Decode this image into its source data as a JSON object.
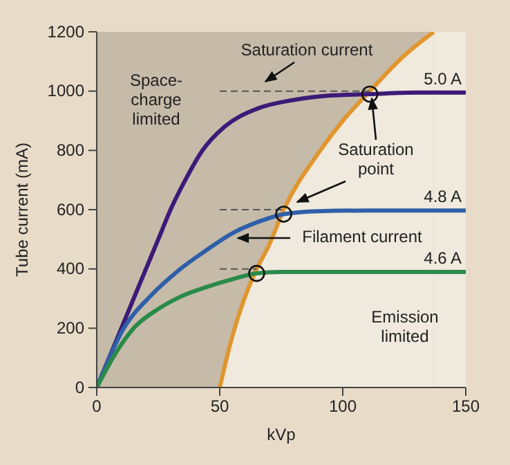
{
  "chart_data": {
    "type": "line",
    "xlabel": "kVp",
    "ylabel": "Tube current (mA)",
    "xlim": [
      0,
      150
    ],
    "xticks": [
      0,
      50,
      100,
      150
    ],
    "ylim": [
      0,
      1200
    ],
    "yticks": [
      0,
      200,
      400,
      600,
      800,
      1000,
      1200
    ],
    "grid": false,
    "bands": [
      {
        "axis": "x",
        "from": 0,
        "to": 137,
        "color": "#c6bba9"
      }
    ],
    "series": [
      {
        "type": "area",
        "color": "#e0962e",
        "x": [
          50,
          55,
          60,
          65,
          70,
          76,
          90,
          100,
          111,
          125,
          137
        ],
        "values": [
          0,
          170,
          300,
          400,
          480,
          600,
          790,
          900,
          1000,
          1120,
          1200
        ]
      },
      {
        "name": "5.0 A",
        "color": "#3d1a78",
        "x": [
          0,
          10,
          20,
          25,
          30,
          36,
          43,
          52,
          65,
          80,
          95,
          111,
          130,
          150
        ],
        "values": [
          0,
          200,
          400,
          500,
          600,
          700,
          800,
          880,
          940,
          970,
          985,
          990,
          995,
          995
        ]
      },
      {
        "name": "4.8 A",
        "color": "#2f5fa8",
        "x": [
          0,
          11,
          22,
          34,
          44,
          55,
          66,
          76,
          90,
          110,
          150
        ],
        "values": [
          0,
          200,
          310,
          400,
          460,
          520,
          560,
          585,
          595,
          597,
          597
        ]
      },
      {
        "name": "4.6 A",
        "color": "#2a8a4a",
        "x": [
          0,
          8,
          15,
          25,
          35,
          45,
          55,
          65,
          75,
          100,
          150
        ],
        "values": [
          0,
          120,
          200,
          265,
          310,
          340,
          365,
          385,
          390,
          390,
          390
        ]
      },
      {
        "type": "line",
        "line_style": "dashed",
        "color": "#555555",
        "x": [
          50,
          111
        ],
        "values": [
          1000,
          1000
        ]
      },
      {
        "type": "line",
        "line_style": "dashed",
        "color": "#555555",
        "x": [
          50,
          76
        ],
        "values": [
          600,
          600
        ]
      },
      {
        "type": "line",
        "line_style": "dashed",
        "color": "#555555",
        "x": [
          50,
          65
        ],
        "values": [
          400,
          400
        ]
      },
      {
        "type": "scatter",
        "marker": "circle",
        "color": "#111111",
        "x": [
          111,
          76,
          65
        ],
        "values": [
          990,
          585,
          385
        ]
      }
    ],
    "annotations": [
      "Saturation current",
      "Space-\ncharge\nlimited",
      "Saturation\npoint",
      "Filament current",
      "Emission\nlimited"
    ]
  }
}
